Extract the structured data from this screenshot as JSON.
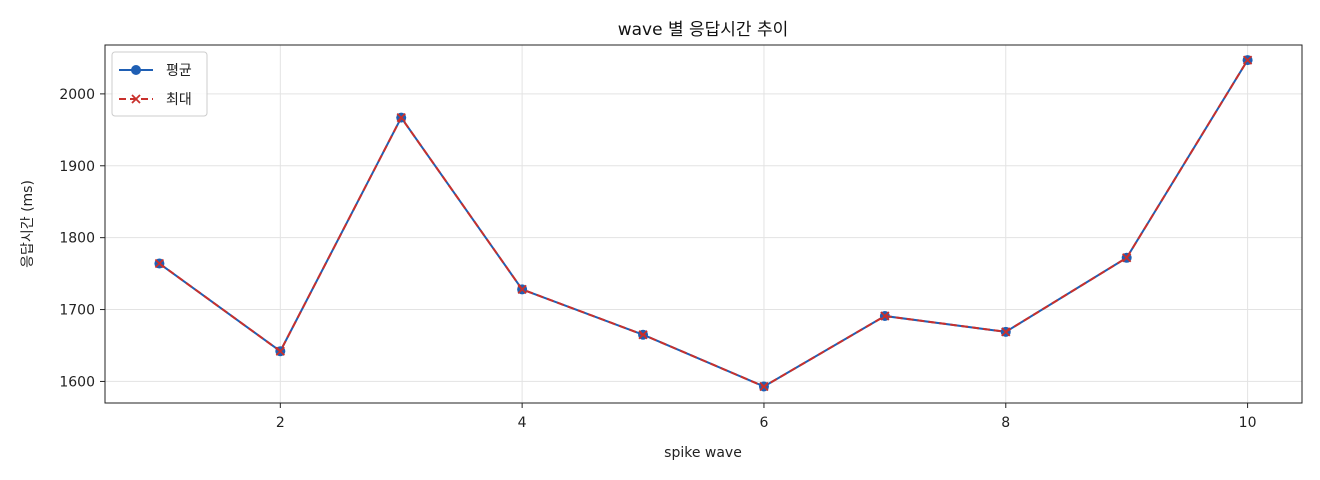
{
  "chart_data": {
    "type": "line",
    "title": "wave 별 응답시간 추이",
    "xlabel": "spike wave",
    "ylabel": "응답시간 (ms)",
    "x": [
      1,
      2,
      3,
      4,
      5,
      6,
      7,
      8,
      9,
      10
    ],
    "xlim": [
      0.55,
      10.45
    ],
    "ylim": [
      1570,
      2068
    ],
    "xticks": [
      2,
      4,
      6,
      8,
      10
    ],
    "yticks": [
      1600,
      1700,
      1800,
      1900,
      2000
    ],
    "grid": true,
    "legend_position": "top-left",
    "series": [
      {
        "name": "평균",
        "values": [
          1764,
          1642,
          1967,
          1728,
          1665,
          1593,
          1691,
          1669,
          1772,
          2047
        ],
        "color": "#1f5fb4",
        "marker": "circle",
        "line_style": "solid"
      },
      {
        "name": "최대",
        "values": [
          1764,
          1642,
          1967,
          1728,
          1665,
          1593,
          1691,
          1669,
          1772,
          2047
        ],
        "color": "#c9302c",
        "marker": "x",
        "line_style": "dashed"
      }
    ]
  }
}
